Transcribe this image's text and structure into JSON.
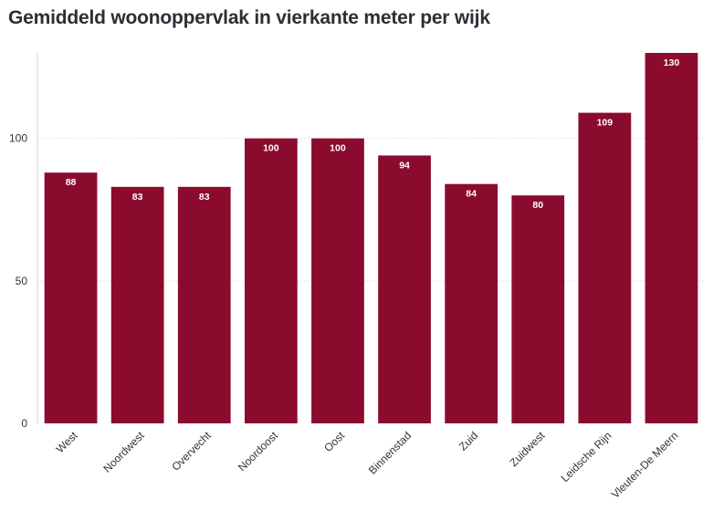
{
  "chart_data": {
    "type": "bar",
    "title": "Gemiddeld woonoppervlak in vierkante meter per wijk",
    "xlabel": "",
    "ylabel": "",
    "categories": [
      "West",
      "Noordwest",
      "Overvecht",
      "Noordoost",
      "Oost",
      "Binnenstad",
      "Zuid",
      "Zuidwest",
      "Leidsche Rijn",
      "Vleuten-De Meern"
    ],
    "values": [
      88,
      83,
      83,
      100,
      100,
      94,
      84,
      80,
      109,
      130
    ],
    "ylim": [
      0,
      130
    ],
    "yticks": [
      0,
      50,
      100
    ],
    "bar_color": "#8a0b2d",
    "grid": true,
    "legend": "none"
  }
}
